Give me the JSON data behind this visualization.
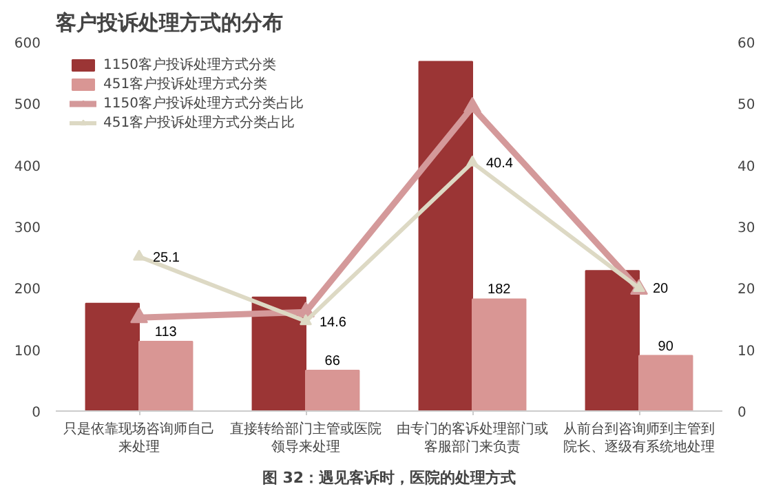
{
  "chart_data": {
    "type": "bar",
    "title": "客户投诉处理方式的分布",
    "categories": [
      "只是依靠现场咨询师自己来处理",
      "直接转给部门主管或医院领导来处理",
      "由专门的客诉处理部门或客服部门来负责",
      "从前台到咨询师到主管到院长、逐级有系统地处理"
    ],
    "series": [
      {
        "name": "1150客户投诉处理方式分类",
        "color": "#9b3535",
        "values": [
          175,
          185,
          568,
          228
        ]
      },
      {
        "name": "451客户投诉处理方式分类",
        "color": "#d99694",
        "values": [
          113,
          66,
          182,
          90
        ],
        "value_labels": [
          "113",
          "66",
          "182",
          "90"
        ]
      },
      {
        "name": "1150客户投诉处理方式分类占比",
        "type": "line",
        "axis": "y2",
        "color": "#d4999a",
        "marker": "triangle",
        "values": [
          15.2,
          16.1,
          49.4,
          19.8
        ]
      },
      {
        "name": "451客户投诉处理方式分类占比",
        "type": "line",
        "axis": "y2",
        "color": "#ddd9c4",
        "marker": "triangle",
        "values": [
          25.1,
          14.6,
          40.4,
          20
        ],
        "value_labels": [
          "25.1",
          "14.6",
          "40.4",
          "20"
        ]
      }
    ],
    "ylim": [
      0,
      600
    ],
    "yticks": [
      0,
      100,
      200,
      300,
      400,
      500,
      600
    ],
    "y2lim": [
      0,
      60
    ],
    "y2ticks": [
      0,
      10,
      20,
      30,
      40,
      50,
      60
    ],
    "legend": "top left",
    "grid": false,
    "annotations": [
      "图 32：遇见客诉时，医院的处理方式"
    ]
  }
}
